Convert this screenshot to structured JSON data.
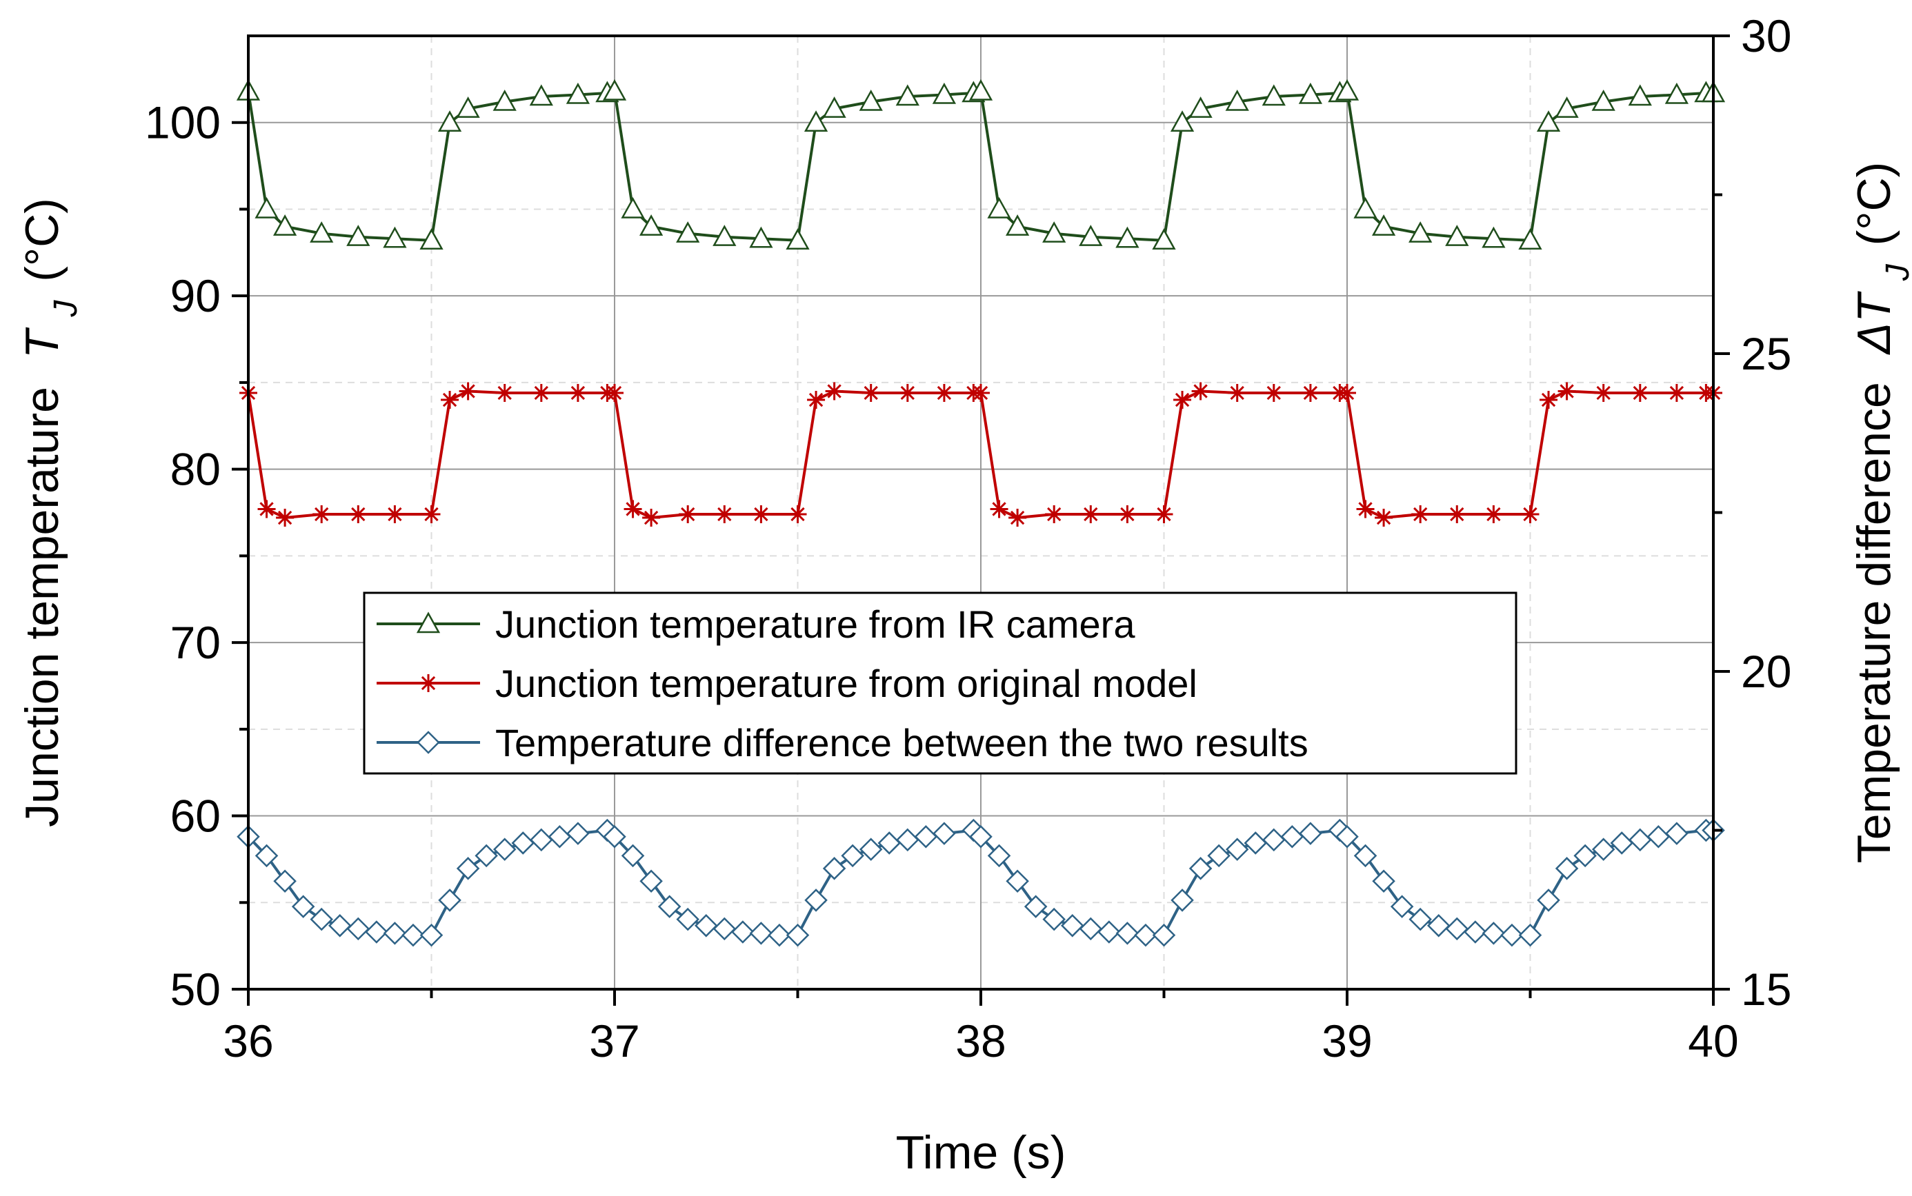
{
  "chart_data": {
    "type": "line",
    "xlabel": "Time (s)",
    "ylabel": {
      "prefix": "Junction temperature",
      "symbol": "T",
      "sub": "J",
      "unit": "(°C)"
    },
    "y2label": {
      "prefix": "Temperature difference",
      "symbol": "ΔT",
      "sub": "J",
      "unit": "(°C)"
    },
    "xlim": [
      36,
      40
    ],
    "ylim": [
      50,
      105
    ],
    "y2lim": [
      15,
      30
    ],
    "x_ticks": [
      "36",
      "37",
      "38",
      "39",
      "40"
    ],
    "y_ticks": [
      "50",
      "60",
      "70",
      "80",
      "90",
      "100"
    ],
    "y2_ticks": [
      "15",
      "20",
      "25",
      "30"
    ],
    "grid": true,
    "legend_position": "center",
    "series": [
      {
        "name": "Junction temperature from IR camera",
        "axis": "left",
        "marker": "triangle",
        "color": "#1f4d1b",
        "period": 1.0,
        "high_start": 0.53,
        "low_phase": [
          [
            0.0,
            101.8
          ],
          [
            0.05,
            95.0
          ],
          [
            0.1,
            94.0
          ],
          [
            0.2,
            93.6
          ],
          [
            0.3,
            93.4
          ],
          [
            0.4,
            93.3
          ],
          [
            0.5,
            93.2
          ],
          [
            0.55,
            100.0
          ],
          [
            0.6,
            100.8
          ],
          [
            0.7,
            101.2
          ],
          [
            0.8,
            101.5
          ],
          [
            0.9,
            101.6
          ],
          [
            0.98,
            101.7
          ]
        ]
      },
      {
        "name": "Junction temperature from original model",
        "axis": "left",
        "marker": "asterisk",
        "color": "#c00000",
        "period": 1.0,
        "high_start": 0.53,
        "low_phase": [
          [
            0.0,
            84.4
          ],
          [
            0.05,
            77.7
          ],
          [
            0.1,
            77.2
          ],
          [
            0.2,
            77.4
          ],
          [
            0.3,
            77.4
          ],
          [
            0.4,
            77.4
          ],
          [
            0.5,
            77.4
          ],
          [
            0.55,
            84.0
          ],
          [
            0.6,
            84.5
          ],
          [
            0.7,
            84.4
          ],
          [
            0.8,
            84.4
          ],
          [
            0.9,
            84.4
          ],
          [
            0.98,
            84.4
          ]
        ]
      },
      {
        "name": "Temperature difference between the two results",
        "axis": "right",
        "marker": "diamond",
        "color": "#2e6286",
        "period": 1.0,
        "high_start": 0.53,
        "low_phase": [
          [
            0.0,
            17.4
          ],
          [
            0.05,
            17.1
          ],
          [
            0.1,
            16.7
          ],
          [
            0.15,
            16.3
          ],
          [
            0.2,
            16.1
          ],
          [
            0.25,
            16.0
          ],
          [
            0.3,
            15.95
          ],
          [
            0.35,
            15.9
          ],
          [
            0.4,
            15.88
          ],
          [
            0.45,
            15.85
          ],
          [
            0.5,
            15.85
          ],
          [
            0.55,
            16.4
          ],
          [
            0.6,
            16.9
          ],
          [
            0.65,
            17.1
          ],
          [
            0.7,
            17.2
          ],
          [
            0.75,
            17.3
          ],
          [
            0.8,
            17.35
          ],
          [
            0.85,
            17.4
          ],
          [
            0.9,
            17.45
          ],
          [
            0.98,
            17.5
          ]
        ]
      }
    ]
  }
}
